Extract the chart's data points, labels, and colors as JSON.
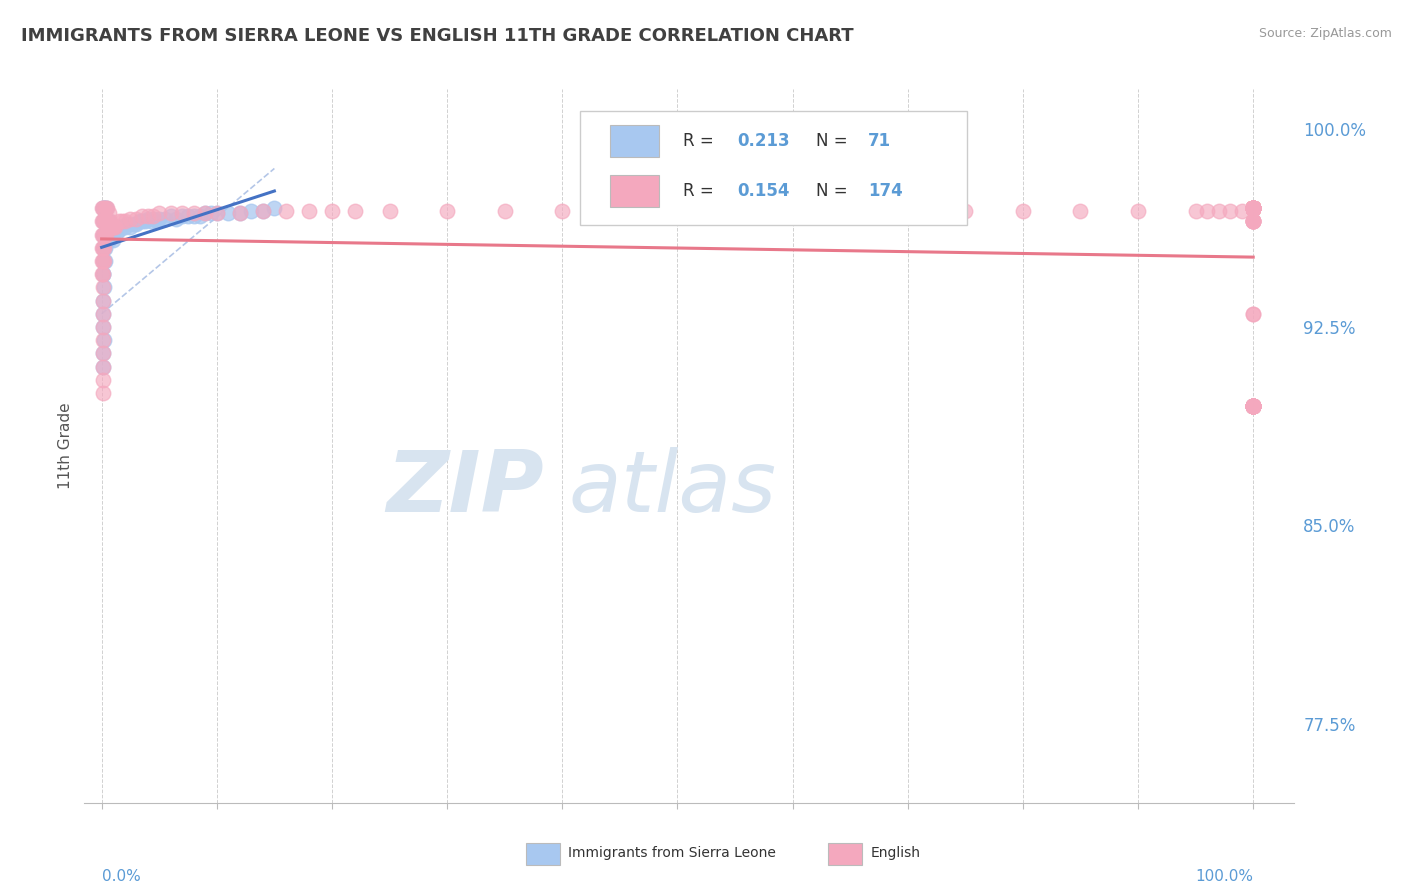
{
  "title": "IMMIGRANTS FROM SIERRA LEONE VS ENGLISH 11TH GRADE CORRELATION CHART",
  "source": "Source: ZipAtlas.com",
  "ylabel": "11th Grade",
  "right_yticks": [
    77.5,
    85.0,
    92.5,
    100.0
  ],
  "right_yticklabels": [
    "77.5%",
    "85.0%",
    "92.5%",
    "100.0%"
  ],
  "blue_color": "#A8C8F0",
  "pink_color": "#F4A8BE",
  "blue_line_color": "#4472C4",
  "pink_line_color": "#E8788A",
  "title_color": "#404040",
  "axis_label_color": "#5B9BD5",
  "background_color": "#FFFFFF",
  "watermark_color": "#D8E4F0",
  "blue_x": [
    0.002,
    0.003,
    0.001,
    0.002,
    0.001,
    0.002,
    0.001,
    0.001,
    0.001,
    0.002,
    0.001,
    0.001,
    0.001,
    0.002,
    0.003,
    0.001,
    0.001,
    0.002,
    0.001,
    0.002,
    0.003,
    0.004,
    0.003,
    0.002,
    0.004,
    0.003,
    0.005,
    0.004,
    0.006,
    0.005,
    0.007,
    0.006,
    0.008,
    0.009,
    0.01,
    0.011,
    0.012,
    0.013,
    0.015,
    0.016,
    0.018,
    0.02,
    0.022,
    0.025,
    0.028,
    0.03,
    0.033,
    0.035,
    0.038,
    0.04,
    0.043,
    0.045,
    0.048,
    0.05,
    0.055,
    0.06,
    0.065,
    0.07,
    0.075,
    0.08,
    0.085,
    0.09,
    0.095,
    0.1,
    0.11,
    0.12,
    0.13,
    0.14,
    0.15,
    0.001,
    0.001
  ],
  "blue_y": [
    97.0,
    96.0,
    95.5,
    95.0,
    94.5,
    94.0,
    93.5,
    93.0,
    92.5,
    92.0,
    91.5,
    91.0,
    96.5,
    96.0,
    95.5,
    95.0,
    94.5,
    96.5,
    96.0,
    95.5,
    95.0,
    97.0,
    96.5,
    96.0,
    97.0,
    96.5,
    96.5,
    96.0,
    96.5,
    96.0,
    96.3,
    95.8,
    96.0,
    96.3,
    95.8,
    96.3,
    96.2,
    96.1,
    96.3,
    96.2,
    96.3,
    96.3,
    96.4,
    96.3,
    96.4,
    96.4,
    96.5,
    96.5,
    96.5,
    96.6,
    96.5,
    96.6,
    96.5,
    96.6,
    96.6,
    96.7,
    96.6,
    96.7,
    96.7,
    96.7,
    96.7,
    96.8,
    96.8,
    96.8,
    96.8,
    96.8,
    96.9,
    96.9,
    97.0,
    97.0,
    97.0
  ],
  "pink_x": [
    0.0,
    0.0,
    0.0,
    0.0,
    0.0,
    0.0,
    0.001,
    0.001,
    0.001,
    0.001,
    0.001,
    0.001,
    0.001,
    0.001,
    0.001,
    0.001,
    0.001,
    0.001,
    0.001,
    0.001,
    0.001,
    0.002,
    0.002,
    0.002,
    0.002,
    0.002,
    0.003,
    0.003,
    0.004,
    0.004,
    0.004,
    0.005,
    0.005,
    0.006,
    0.007,
    0.008,
    0.009,
    0.01,
    0.011,
    0.012,
    0.015,
    0.018,
    0.02,
    0.025,
    0.03,
    0.035,
    0.04,
    0.045,
    0.05,
    0.06,
    0.07,
    0.08,
    0.09,
    0.1,
    0.12,
    0.14,
    0.16,
    0.18,
    0.2,
    0.22,
    0.25,
    0.3,
    0.35,
    0.4,
    0.45,
    0.5,
    0.55,
    0.6,
    0.65,
    0.7,
    0.75,
    0.8,
    0.85,
    0.9,
    0.95,
    0.96,
    0.97,
    0.98,
    0.99,
    1.0,
    1.0,
    1.0,
    1.0,
    1.0,
    1.0,
    1.0,
    1.0,
    1.0,
    1.0,
    1.0,
    1.0,
    1.0,
    1.0,
    1.0,
    1.0,
    1.0,
    1.0,
    1.0,
    1.0,
    1.0,
    1.0,
    1.0,
    1.0,
    1.0,
    1.0,
    1.0,
    1.0,
    1.0,
    1.0,
    1.0,
    1.0,
    1.0,
    1.0,
    1.0,
    1.0,
    1.0,
    1.0,
    1.0,
    1.0,
    1.0,
    1.0,
    1.0,
    1.0,
    1.0,
    1.0,
    1.0,
    1.0,
    1.0,
    1.0,
    1.0,
    1.0,
    1.0,
    1.0,
    1.0,
    1.0,
    1.0,
    1.0,
    1.0,
    1.0,
    1.0,
    1.0,
    1.0,
    1.0,
    1.0,
    1.0,
    1.0,
    1.0,
    1.0,
    1.0,
    1.0,
    1.0,
    1.0,
    1.0,
    1.0,
    1.0,
    1.0,
    1.0,
    1.0,
    1.0,
    1.0,
    1.0,
    1.0,
    1.0,
    1.0,
    1.0,
    1.0,
    1.0,
    1.0,
    1.0,
    1.0,
    1.0,
    1.0,
    1.0,
    1.0
  ],
  "pink_y": [
    97.0,
    96.5,
    96.0,
    95.5,
    95.0,
    94.5,
    97.0,
    96.5,
    96.0,
    95.5,
    95.0,
    94.5,
    94.0,
    93.5,
    93.0,
    92.5,
    92.0,
    91.5,
    91.0,
    90.5,
    90.0,
    97.0,
    96.5,
    96.0,
    95.5,
    95.0,
    96.5,
    96.0,
    97.0,
    96.5,
    96.0,
    97.0,
    96.5,
    96.8,
    96.5,
    96.3,
    96.3,
    96.3,
    96.3,
    96.3,
    96.5,
    96.5,
    96.5,
    96.6,
    96.6,
    96.7,
    96.7,
    96.7,
    96.8,
    96.8,
    96.8,
    96.8,
    96.8,
    96.8,
    96.8,
    96.9,
    96.9,
    96.9,
    96.9,
    96.9,
    96.9,
    96.9,
    96.9,
    96.9,
    96.9,
    96.9,
    96.9,
    96.9,
    96.9,
    96.9,
    96.9,
    96.9,
    96.9,
    96.9,
    96.9,
    96.9,
    96.9,
    96.9,
    96.9,
    97.0,
    97.0,
    97.0,
    97.0,
    97.0,
    97.0,
    97.0,
    97.0,
    97.0,
    97.0,
    97.0,
    97.0,
    97.0,
    97.0,
    97.0,
    97.0,
    97.0,
    97.0,
    97.0,
    97.0,
    97.0,
    97.0,
    97.0,
    97.0,
    97.0,
    97.0,
    97.0,
    97.0,
    97.0,
    97.0,
    97.0,
    97.0,
    97.0,
    97.0,
    97.0,
    97.0,
    97.0,
    97.0,
    97.0,
    97.0,
    97.0,
    97.0,
    97.0,
    96.5,
    96.5,
    96.5,
    96.5,
    96.5,
    96.5,
    97.0,
    97.0,
    97.0,
    97.0,
    97.0,
    97.0,
    97.0,
    97.0,
    97.0,
    97.0,
    97.0,
    97.0,
    97.0,
    97.0,
    97.0,
    97.0,
    97.0,
    97.0,
    97.0,
    93.0,
    93.0,
    89.5,
    89.5,
    89.5,
    89.5,
    89.5,
    89.5,
    89.5,
    89.5,
    89.5,
    89.5,
    89.5,
    89.5,
    89.5,
    89.5,
    89.5,
    89.5,
    89.5,
    89.5,
    89.5,
    89.5,
    89.5,
    89.5,
    89.5,
    89.5,
    89.5
  ]
}
